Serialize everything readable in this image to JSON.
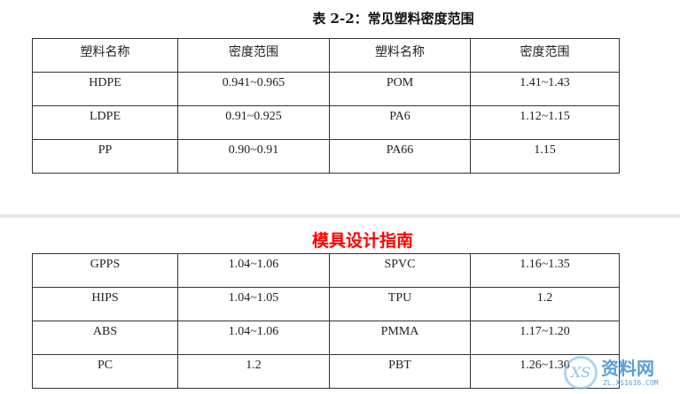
{
  "title": "表 2-2：常见塑料密度范围",
  "header": [
    "塑料名称",
    "密度范围",
    "塑料名称",
    "密度范围"
  ],
  "rows1": [
    [
      "HDPE",
      "0.941~0.965",
      "POM",
      "1.41~1.43"
    ],
    [
      "LDPE",
      "0.91~0.925",
      "PA6",
      "1.12~1.15"
    ],
    [
      "PP",
      "0.90~0.91",
      "PA66",
      "1.15"
    ]
  ],
  "watermark_title": "模具设计指南",
  "rows2": [
    [
      "GPPS",
      "1.04~1.06",
      "SPVC",
      "1.16~1.35"
    ],
    [
      "HIPS",
      "1.04~1.05",
      "TPU",
      "1.2"
    ],
    [
      "ABS",
      "1.04~1.06",
      "PMMA",
      "1.17~1.20"
    ],
    [
      "PC",
      "1.2",
      "PBT",
      "1.26~1.30"
    ]
  ],
  "logo": {
    "text": "资料网",
    "url": "ZL.XS1616.COM",
    "mark": "XS"
  }
}
